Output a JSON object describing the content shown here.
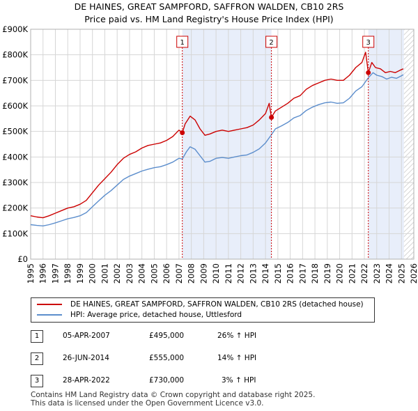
{
  "title": "DE HAINES, GREAT SAMPFORD, SAFFRON WALDEN, CB10 2RS",
  "subtitle": "Price paid vs. HM Land Registry's House Price Index (HPI)",
  "colors": {
    "property": "#cc0000",
    "hpi": "#5b8dcc",
    "shade": "#e8eefa",
    "grid": "#d6d6d6"
  },
  "chart_data": {
    "type": "line",
    "ylim": [
      0,
      900000
    ],
    "xlim": [
      1995,
      2026
    ],
    "y_ticks": [
      {
        "value": 0,
        "label": "£0"
      },
      {
        "value": 100000,
        "label": "£100K"
      },
      {
        "value": 200000,
        "label": "£200K"
      },
      {
        "value": 300000,
        "label": "£300K"
      },
      {
        "value": 400000,
        "label": "£400K"
      },
      {
        "value": 500000,
        "label": "£500K"
      },
      {
        "value": 600000,
        "label": "£600K"
      },
      {
        "value": 700000,
        "label": "£700K"
      },
      {
        "value": 800000,
        "label": "£800K"
      },
      {
        "value": 900000,
        "label": "£900K"
      }
    ],
    "x_ticks": [
      1995,
      1996,
      1997,
      1998,
      1999,
      2000,
      2001,
      2002,
      2003,
      2004,
      2005,
      2006,
      2007,
      2008,
      2009,
      2010,
      2011,
      2012,
      2013,
      2014,
      2015,
      2016,
      2017,
      2018,
      2019,
      2020,
      2021,
      2022,
      2023,
      2024,
      2025,
      2026
    ],
    "shaded_ranges": [
      [
        2007.27,
        2014.48
      ],
      [
        2022.32,
        2025.2
      ]
    ],
    "hatch_from": 2025.2,
    "series": [
      {
        "name": "DE HAINES, GREAT SAMPFORD, SAFFRON WALDEN, CB10 2RS (detached house)",
        "color": "#cc0000",
        "points": [
          [
            1995.0,
            170000
          ],
          [
            1995.5,
            165000
          ],
          [
            1996.0,
            162000
          ],
          [
            1996.5,
            170000
          ],
          [
            1997.0,
            180000
          ],
          [
            1997.5,
            190000
          ],
          [
            1998.0,
            200000
          ],
          [
            1998.5,
            205000
          ],
          [
            1999.0,
            215000
          ],
          [
            1999.5,
            230000
          ],
          [
            2000.0,
            260000
          ],
          [
            2000.5,
            290000
          ],
          [
            2001.0,
            315000
          ],
          [
            2001.5,
            340000
          ],
          [
            2002.0,
            370000
          ],
          [
            2002.5,
            395000
          ],
          [
            2003.0,
            410000
          ],
          [
            2003.5,
            420000
          ],
          [
            2004.0,
            435000
          ],
          [
            2004.5,
            445000
          ],
          [
            2005.0,
            450000
          ],
          [
            2005.5,
            455000
          ],
          [
            2006.0,
            465000
          ],
          [
            2006.5,
            480000
          ],
          [
            2007.0,
            505000
          ],
          [
            2007.27,
            495000
          ],
          [
            2007.5,
            530000
          ],
          [
            2007.9,
            560000
          ],
          [
            2008.3,
            545000
          ],
          [
            2008.7,
            510000
          ],
          [
            2009.1,
            485000
          ],
          [
            2009.5,
            490000
          ],
          [
            2010.0,
            500000
          ],
          [
            2010.5,
            505000
          ],
          [
            2011.0,
            500000
          ],
          [
            2011.5,
            505000
          ],
          [
            2012.0,
            510000
          ],
          [
            2012.5,
            515000
          ],
          [
            2013.0,
            525000
          ],
          [
            2013.5,
            545000
          ],
          [
            2014.0,
            570000
          ],
          [
            2014.3,
            610000
          ],
          [
            2014.48,
            555000
          ],
          [
            2014.8,
            580000
          ],
          [
            2015.3,
            595000
          ],
          [
            2015.8,
            610000
          ],
          [
            2016.3,
            630000
          ],
          [
            2016.8,
            640000
          ],
          [
            2017.3,
            665000
          ],
          [
            2017.8,
            680000
          ],
          [
            2018.3,
            690000
          ],
          [
            2018.8,
            700000
          ],
          [
            2019.3,
            705000
          ],
          [
            2019.8,
            700000
          ],
          [
            2020.3,
            700000
          ],
          [
            2020.8,
            720000
          ],
          [
            2021.3,
            750000
          ],
          [
            2021.8,
            770000
          ],
          [
            2022.1,
            810000
          ],
          [
            2022.32,
            730000
          ],
          [
            2022.6,
            770000
          ],
          [
            2022.9,
            750000
          ],
          [
            2023.3,
            745000
          ],
          [
            2023.7,
            730000
          ],
          [
            2024.1,
            735000
          ],
          [
            2024.5,
            730000
          ],
          [
            2024.9,
            740000
          ],
          [
            2025.15,
            745000
          ]
        ]
      },
      {
        "name": "HPI: Average price, detached house, Uttlesford",
        "color": "#5b8dcc",
        "points": [
          [
            1995.0,
            135000
          ],
          [
            1995.5,
            132000
          ],
          [
            1996.0,
            130000
          ],
          [
            1996.5,
            135000
          ],
          [
            1997.0,
            142000
          ],
          [
            1997.5,
            150000
          ],
          [
            1998.0,
            158000
          ],
          [
            1998.5,
            163000
          ],
          [
            1999.0,
            170000
          ],
          [
            1999.5,
            182000
          ],
          [
            2000.0,
            205000
          ],
          [
            2000.5,
            228000
          ],
          [
            2001.0,
            250000
          ],
          [
            2001.5,
            268000
          ],
          [
            2002.0,
            290000
          ],
          [
            2002.5,
            312000
          ],
          [
            2003.0,
            325000
          ],
          [
            2003.5,
            335000
          ],
          [
            2004.0,
            345000
          ],
          [
            2004.5,
            352000
          ],
          [
            2005.0,
            358000
          ],
          [
            2005.5,
            362000
          ],
          [
            2006.0,
            370000
          ],
          [
            2006.5,
            380000
          ],
          [
            2007.0,
            395000
          ],
          [
            2007.27,
            392000
          ],
          [
            2007.6,
            420000
          ],
          [
            2007.9,
            440000
          ],
          [
            2008.3,
            430000
          ],
          [
            2008.7,
            405000
          ],
          [
            2009.1,
            380000
          ],
          [
            2009.5,
            383000
          ],
          [
            2010.0,
            395000
          ],
          [
            2010.5,
            398000
          ],
          [
            2011.0,
            395000
          ],
          [
            2011.5,
            400000
          ],
          [
            2012.0,
            405000
          ],
          [
            2012.5,
            408000
          ],
          [
            2013.0,
            418000
          ],
          [
            2013.5,
            432000
          ],
          [
            2014.0,
            455000
          ],
          [
            2014.48,
            487000
          ],
          [
            2014.8,
            510000
          ],
          [
            2015.3,
            522000
          ],
          [
            2015.8,
            535000
          ],
          [
            2016.3,
            553000
          ],
          [
            2016.8,
            562000
          ],
          [
            2017.3,
            582000
          ],
          [
            2017.8,
            595000
          ],
          [
            2018.3,
            605000
          ],
          [
            2018.8,
            612000
          ],
          [
            2019.3,
            615000
          ],
          [
            2019.8,
            610000
          ],
          [
            2020.3,
            612000
          ],
          [
            2020.8,
            630000
          ],
          [
            2021.3,
            658000
          ],
          [
            2021.8,
            675000
          ],
          [
            2022.32,
            710000
          ],
          [
            2022.7,
            730000
          ],
          [
            2023.0,
            720000
          ],
          [
            2023.4,
            715000
          ],
          [
            2023.8,
            705000
          ],
          [
            2024.2,
            712000
          ],
          [
            2024.6,
            708000
          ],
          [
            2025.0,
            718000
          ],
          [
            2025.15,
            722000
          ]
        ]
      }
    ],
    "markers": [
      {
        "label": "1",
        "x": 2007.27,
        "y": 495000
      },
      {
        "label": "2",
        "x": 2014.48,
        "y": 555000
      },
      {
        "label": "3",
        "x": 2022.32,
        "y": 730000
      }
    ]
  },
  "legend": {
    "property_label": "DE HAINES, GREAT SAMPFORD, SAFFRON WALDEN, CB10 2RS (detached house)",
    "hpi_label": "HPI: Average price, detached house, Uttlesford"
  },
  "sales": [
    {
      "num": "1",
      "date": "05-APR-2007",
      "price": "£495,000",
      "hpi": "26% ↑ HPI"
    },
    {
      "num": "2",
      "date": "26-JUN-2014",
      "price": "£555,000",
      "hpi": "14% ↑ HPI"
    },
    {
      "num": "3",
      "date": "28-APR-2022",
      "price": "£730,000",
      "hpi": "3% ↑ HPI"
    }
  ],
  "footer": {
    "line1": "Contains HM Land Registry data © Crown copyright and database right 2025.",
    "line2": "This data is licensed under the Open Government Licence v3.0."
  }
}
